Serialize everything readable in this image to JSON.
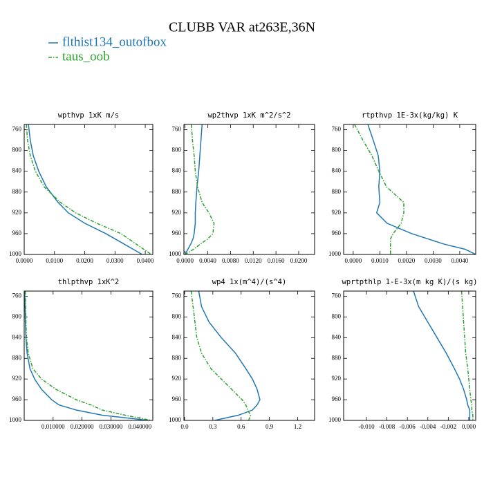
{
  "title": "CLUBB VAR at263E,36N",
  "legend": [
    {
      "name": "flthist134_outofbox",
      "color": "#1f77b4",
      "style": "solid"
    },
    {
      "name": "taus_oob",
      "color": "#2ca02c",
      "style": "dashdot"
    }
  ],
  "chart_data": [
    {
      "type": "line",
      "title": "wpthvp  1xK m/s",
      "y": [
        750,
        780,
        810,
        840,
        870,
        900,
        920,
        940,
        960,
        970,
        980,
        990,
        1000
      ],
      "series": [
        {
          "values": [
            0.0014,
            0.002,
            0.003,
            0.0048,
            0.0073,
            0.0112,
            0.0146,
            0.02,
            0.027,
            0.03,
            0.033,
            0.036,
            0.039
          ]
        },
        {
          "values": [
            0.0007,
            0.0011,
            0.002,
            0.0037,
            0.0066,
            0.012,
            0.017,
            0.024,
            0.032,
            0.0345,
            0.037,
            0.0395,
            0.042
          ]
        }
      ],
      "xlim": [
        0,
        0.0425
      ],
      "xticks": [
        {
          "value": 0,
          "label": "0.0000"
        },
        {
          "value": 0.01,
          "label": "0.0100"
        },
        {
          "value": 0.02,
          "label": "0.0200"
        },
        {
          "value": 0.03,
          "label": "0.0300"
        },
        {
          "value": 0.04,
          "label": "0.0400"
        }
      ],
      "ylim": [
        1000,
        750
      ],
      "yticks": [
        760,
        800,
        840,
        880,
        920,
        960,
        1000
      ]
    },
    {
      "type": "line",
      "title": "wp2thvp  1xK m^2/s^2",
      "y": [
        750,
        780,
        810,
        840,
        870,
        900,
        920,
        940,
        960,
        970,
        980,
        990,
        1000
      ],
      "series": [
        {
          "values": [
            0.003,
            0.0028,
            0.0026,
            0.0024,
            0.0021,
            0.0019,
            0.0018,
            0.0018,
            0.0016,
            0.0014,
            0.001,
            0.0005,
            0
          ]
        },
        {
          "values": [
            0.0011,
            0.0013,
            0.0016,
            0.0018,
            0.0022,
            0.003,
            0.0042,
            0.0051,
            0.0049,
            0.004,
            0.0027,
            0.0015,
            0
          ]
        }
      ],
      "xlim": [
        -0.0002,
        0.0228
      ],
      "xticks": [
        {
          "value": 0,
          "label": "0.0000"
        },
        {
          "value": 0.004,
          "label": "0.0040"
        },
        {
          "value": 0.008,
          "label": "0.0080"
        },
        {
          "value": 0.012,
          "label": "0.0120"
        },
        {
          "value": 0.016,
          "label": "0.0160"
        },
        {
          "value": 0.02,
          "label": "0.0200"
        }
      ],
      "ylim": [
        1000,
        750
      ],
      "yticks": [
        760,
        800,
        840,
        880,
        920,
        960,
        1000
      ]
    },
    {
      "type": "line",
      "title": "rtpthvp  1E-3x(kg/kg) K",
      "y": [
        750,
        780,
        810,
        840,
        870,
        900,
        920,
        940,
        960,
        970,
        980,
        990,
        1000
      ],
      "series": [
        {
          "values": [
            0.00055,
            0.00075,
            0.00094,
            0.001,
            0.00096,
            0.001,
            0.00088,
            0.00127,
            0.0022,
            0.0028,
            0.0034,
            0.0042,
            0.0046
          ]
        },
        {
          "values": [
            5e-05,
            0.00036,
            0.0007,
            0.00096,
            0.00125,
            0.0019,
            0.0019,
            0.0018,
            0.0015,
            0.0014,
            0.0014,
            0.0014,
            0.0014
          ]
        }
      ],
      "xlim": [
        -0.00036,
        0.0046
      ],
      "xticks": [
        {
          "value": 0,
          "label": "0.0000"
        },
        {
          "value": 0.001,
          "label": "0.0010"
        },
        {
          "value": 0.002,
          "label": "0.0020"
        },
        {
          "value": 0.003,
          "label": "0.0030"
        },
        {
          "value": 0.004,
          "label": "0.0040"
        }
      ],
      "ylim": [
        1000,
        750
      ],
      "yticks": [
        760,
        800,
        840,
        880,
        920,
        960,
        1000
      ]
    },
    {
      "type": "line",
      "title": "thlpthvp  1xK^2",
      "y": [
        750,
        780,
        810,
        840,
        870,
        900,
        920,
        940,
        960,
        970,
        980,
        990,
        1000
      ],
      "series": [
        {
          "values": [
            0.0002,
            0.0003,
            0.0004,
            0.0006,
            0.001,
            0.002,
            0.0036,
            0.006,
            0.0095,
            0.012,
            0.018,
            0.027,
            0.043
          ]
        },
        {
          "values": [
            0.0004,
            0.0005,
            0.0006,
            0.0008,
            0.0014,
            0.003,
            0.006,
            0.011,
            0.018,
            0.023,
            0.027,
            0.035,
            0.044
          ]
        }
      ],
      "xlim": [
        0,
        0.0445
      ],
      "xticks": [
        {
          "value": 0.01,
          "label": "0.010000"
        },
        {
          "value": 0.02,
          "label": "0.020000"
        },
        {
          "value": 0.03,
          "label": "0.030000"
        },
        {
          "value": 0.04,
          "label": "0.040000"
        }
      ],
      "ylim": [
        1000,
        750
      ],
      "yticks": [
        760,
        800,
        840,
        880,
        920,
        960,
        1000
      ]
    },
    {
      "type": "line",
      "title": "wp4  1x(m^4)/(s^4)",
      "y": [
        750,
        780,
        810,
        840,
        870,
        900,
        920,
        940,
        960,
        970,
        980,
        990,
        1000
      ],
      "series": [
        {
          "values": [
            0.15,
            0.18,
            0.26,
            0.39,
            0.54,
            0.65,
            0.72,
            0.77,
            0.8,
            0.77,
            0.72,
            0.57,
            0.32
          ]
        },
        {
          "values": [
            0.07,
            0.09,
            0.11,
            0.13,
            0.18,
            0.28,
            0.39,
            0.5,
            0.61,
            0.65,
            0.67,
            0.7,
            0.68
          ]
        }
      ],
      "xlim": [
        -0.007,
        1.38
      ],
      "xticks": [
        {
          "value": 0,
          "label": "0.0"
        },
        0.3,
        0.6,
        0.9,
        1.2
      ],
      "ylim": [
        1000,
        750
      ],
      "yticks": [
        760,
        800,
        840,
        880,
        920,
        960,
        1000
      ]
    },
    {
      "type": "line",
      "title": "wprtpthlp  1-E-3x(m kg K)/(s kg)",
      "y": [
        750,
        780,
        810,
        840,
        870,
        900,
        920,
        940,
        960,
        970,
        980,
        990,
        1000
      ],
      "series": [
        {
          "values": [
            -0.0054,
            -0.0049,
            -0.004,
            -0.0031,
            -0.0022,
            -0.0014,
            -0.0009,
            -0.0005,
            -0.0002,
            -0.0001,
            0.0001,
            0.0001,
            0.0001
          ]
        },
        {
          "values": [
            -0.0007,
            -0.0006,
            -0.0005,
            -0.0004,
            -0.0003,
            -0.0001,
            0,
            0.0001,
            0.0002,
            0.0003,
            0.0003,
            0.0004,
            0.0004
          ]
        }
      ],
      "xlim": [
        -0.01223,
        0.00068
      ],
      "xticks": [
        {
          "value": -0.01,
          "label": "-0.010"
        },
        {
          "value": -0.008,
          "label": "-0.008"
        },
        {
          "value": -0.006,
          "label": "-0.006"
        },
        {
          "value": -0.004,
          "label": "-0.004"
        },
        {
          "value": -0.002,
          "label": "-0.002"
        },
        {
          "value": 0,
          "label": "0.000"
        }
      ],
      "ylim": [
        1000,
        750
      ],
      "yticks": [
        760,
        800,
        840,
        880,
        920,
        960,
        1000
      ]
    }
  ]
}
